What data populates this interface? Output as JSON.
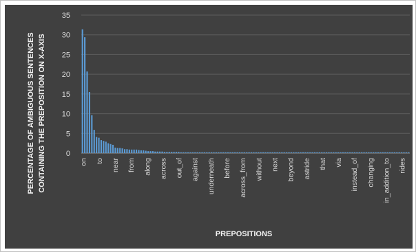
{
  "chart_data": {
    "type": "bar",
    "ylabel_line1": "PERCENTAGE OF AMBIGUOUS SENTENCES",
    "ylabel_line2": "CONTAINING  THE PREPOSITION ON X-AXIS",
    "xlabel": "PREPOSITIONS",
    "ylim": [
      0,
      35
    ],
    "yticks": [
      0,
      5,
      10,
      15,
      20,
      25,
      30,
      35
    ],
    "grid": true,
    "legend": "none",
    "bar_color": "#5b9bd5",
    "background": "#404040",
    "labeled_categories": [
      "on",
      "to",
      "near",
      "from",
      "along",
      "across",
      "out_of",
      "against",
      "underneath",
      "before",
      "across_from",
      "without",
      "next",
      "beyond",
      "astride",
      "that",
      "via",
      "instead_of",
      "changing",
      "in_addition_to",
      "rides"
    ],
    "values": [
      31.4,
      29.4,
      20.7,
      15.5,
      9.6,
      5.9,
      4.1,
      3.9,
      3.3,
      3.1,
      2.9,
      2.5,
      2.3,
      2.1,
      1.4,
      1.3,
      1.3,
      1.2,
      1.0,
      1.0,
      0.9,
      0.9,
      0.9,
      0.9,
      0.8,
      0.7,
      0.7,
      0.6,
      0.5,
      0.5,
      0.5,
      0.4,
      0.4,
      0.4,
      0.4,
      0.3,
      0.3,
      0.3,
      0.3,
      0.3,
      0.3,
      0.3,
      0.2,
      0.2,
      0.2,
      0.2,
      0.2,
      0.2,
      0.2,
      0.2,
      0.2,
      0.2,
      0.2,
      0.2,
      0.2,
      0.2,
      0.2,
      0.2,
      0.2,
      0.2,
      0.2,
      0.2,
      0.2,
      0.2,
      0.2,
      0.2,
      0.2,
      0.2,
      0.2,
      0.2,
      0.2,
      0.2,
      0.2,
      0.2,
      0.2,
      0.2,
      0.2,
      0.2,
      0.2,
      0.2,
      0.2,
      0.2,
      0.2,
      0.2,
      0.2,
      0.2,
      0.2,
      0.2,
      0.2,
      0.2,
      0.2,
      0.2,
      0.2,
      0.2,
      0.2,
      0.2,
      0.2,
      0.2,
      0.2,
      0.2,
      0.2,
      0.2,
      0.2,
      0.2,
      0.2,
      0.2,
      0.2,
      0.2,
      0.2,
      0.2,
      0.2,
      0.2,
      0.2,
      0.2,
      0.2,
      0.2,
      0.2,
      0.2,
      0.2,
      0.2,
      0.2,
      0.2,
      0.2,
      0.2,
      0.2,
      0.2,
      0.2,
      0.2,
      0.2,
      0.2,
      0.2,
      0.2,
      0.2,
      0.2,
      0.2,
      0.2,
      0.2,
      0.2,
      0.2,
      0.2
    ]
  }
}
